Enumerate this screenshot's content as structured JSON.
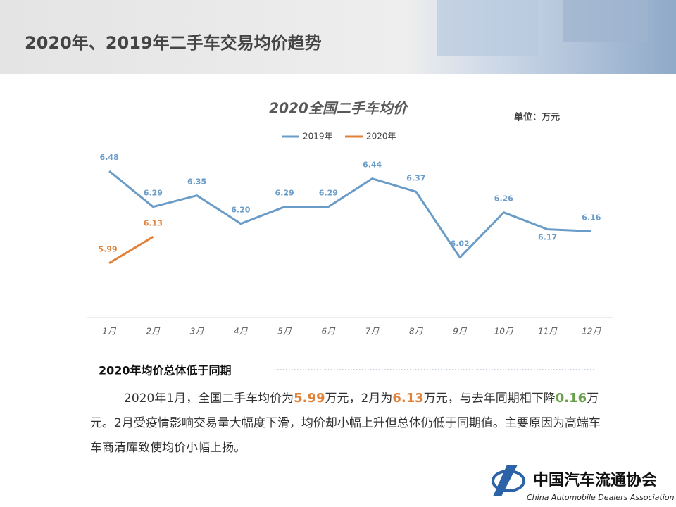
{
  "header": {
    "title": "2020年、2019年二手车交易均价趋势"
  },
  "chart_data": {
    "type": "line",
    "title": "2020全国二手车均价",
    "unit_label": "单位：万元",
    "categories": [
      "1月",
      "2月",
      "3月",
      "4月",
      "5月",
      "6月",
      "7月",
      "8月",
      "9月",
      "10月",
      "11月",
      "12月"
    ],
    "series": [
      {
        "name": "2019年",
        "color": "#6a9cc8",
        "values": [
          6.48,
          6.29,
          6.35,
          6.2,
          6.29,
          6.29,
          6.44,
          6.37,
          6.02,
          6.26,
          6.17,
          6.16
        ],
        "value_labels": [
          "6.48",
          "6.29",
          "6.35",
          "6.20",
          "6.29",
          "6.29",
          "6.44",
          "6.37",
          "6.02",
          "6.26",
          "6.17",
          "6.16"
        ]
      },
      {
        "name": "2020年",
        "color": "#e0823a",
        "values": [
          5.99,
          6.13,
          null,
          null,
          null,
          null,
          null,
          null,
          null,
          null,
          null,
          null
        ],
        "value_labels": [
          "5.99",
          "6.13",
          null,
          null,
          null,
          null,
          null,
          null,
          null,
          null,
          null,
          null
        ]
      }
    ],
    "ylim": [
      5.7,
      6.6
    ],
    "grid": false,
    "legend": "top"
  },
  "summary": {
    "heading": "2020年均价总体低于同期",
    "parts": [
      "2020年1月，全国二手车均价为",
      "5.99",
      "万元，2月为",
      "6.13",
      "万元，与去年同期相下降",
      "0.16",
      "万元。2月受疫情影响交易量大幅度下滑，均价却小幅上升但总体仍低于同期值。主要原因为高端车车商清库致使均价小幅上扬。"
    ]
  },
  "logo": {
    "name": "中国汽车流通协会",
    "subtitle": "China Automobile Dealers Association"
  }
}
